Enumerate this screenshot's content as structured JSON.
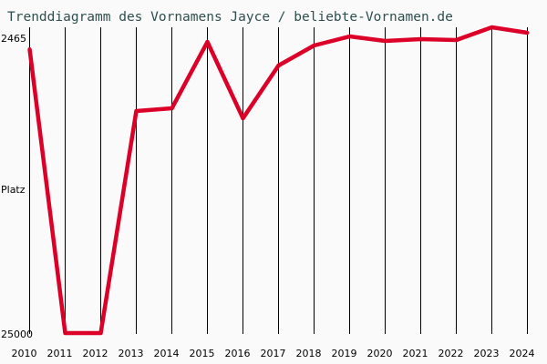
{
  "chart_data": {
    "type": "line",
    "title": "Trenddiagramm des Vornamens Jayce / beliebte-Vornamen.de",
    "xlabel": "",
    "ylabel": "Platz",
    "y_tick_labels": [
      "2465",
      "25000"
    ],
    "y_reversed": true,
    "ylim": [
      2465,
      25000
    ],
    "grid": "vertical",
    "x": [
      "2010",
      "2011",
      "2012",
      "2013",
      "2014",
      "2015",
      "2016",
      "2017",
      "2018",
      "2019",
      "2020",
      "2021",
      "2022",
      "2023",
      "2024"
    ],
    "series": [
      {
        "values": [
          3366,
          25000,
          25000,
          8082,
          7874,
          2812,
          8636,
          4615,
          3089,
          2396,
          2742,
          2604,
          2673,
          1702,
          2118
        ]
      }
    ],
    "colors": {
      "line": "#dc0028",
      "title": "#2f4f4f",
      "background": "#fafafa",
      "grid": "#000000"
    }
  }
}
